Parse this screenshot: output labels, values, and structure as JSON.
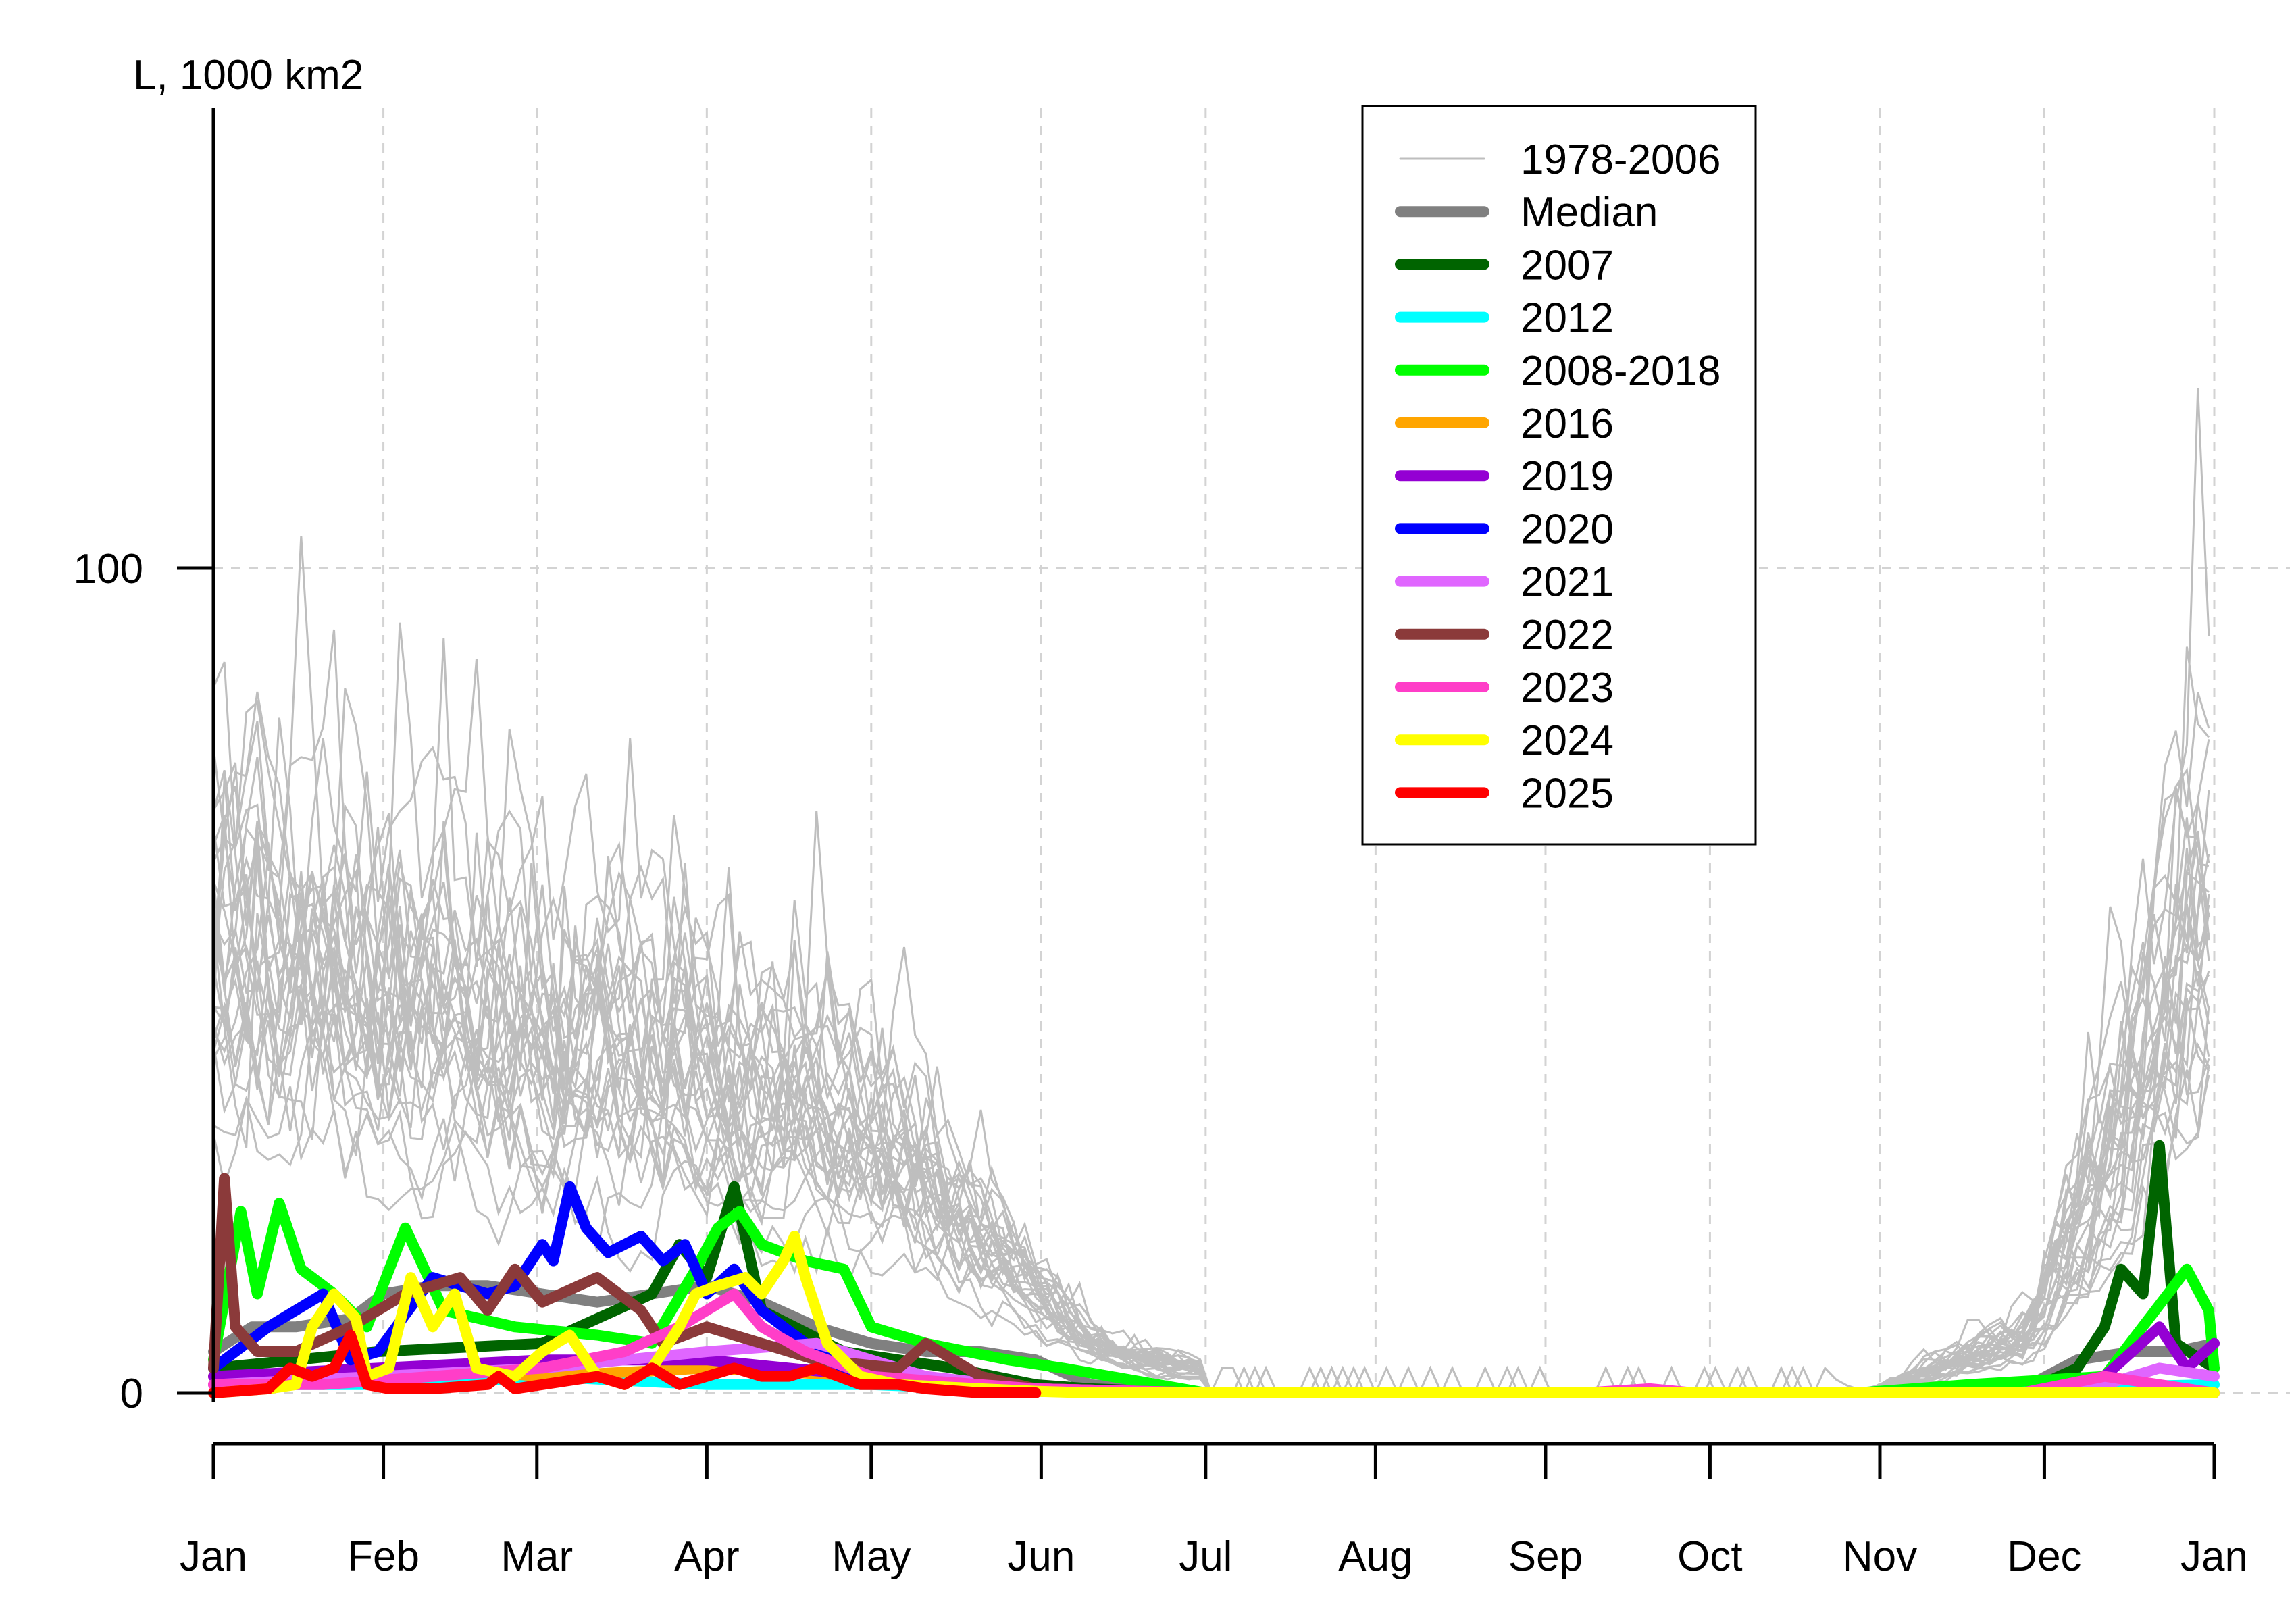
{
  "chart_data": {
    "type": "line",
    "ylabel": "L, 1000 km2",
    "xlabel": "",
    "title": "",
    "x_ticks": [
      "Jan",
      "Feb",
      "Mar",
      "Apr",
      "May",
      "Jun",
      "Jul",
      "Aug",
      "Sep",
      "Oct",
      "Nov",
      "Dec",
      "Jan"
    ],
    "x_tick_days": [
      0,
      31,
      59,
      90,
      120,
      151,
      181,
      212,
      243,
      273,
      304,
      334,
      365
    ],
    "y_ticks": [
      0,
      100
    ],
    "ylim": [
      -5,
      155
    ],
    "xlim": [
      0,
      365
    ],
    "grid": true,
    "legend_position": "top-center",
    "legend": [
      {
        "label": "1978-2006",
        "color": "#bebebe",
        "width": "thin"
      },
      {
        "label": "Median",
        "color": "#808080",
        "width": "thick"
      },
      {
        "label": "2007",
        "color": "#006400",
        "width": "thick"
      },
      {
        "label": "2012",
        "color": "#00ffff",
        "width": "thick"
      },
      {
        "label": "2008-2018",
        "color": "#00ff00",
        "width": "thick"
      },
      {
        "label": "2016",
        "color": "#ffa500",
        "width": "thick"
      },
      {
        "label": "2019",
        "color": "#9400d3",
        "width": "thick"
      },
      {
        "label": "2020",
        "color": "#0000ff",
        "width": "thick"
      },
      {
        "label": "2021",
        "color": "#e066ff",
        "width": "thick"
      },
      {
        "label": "2022",
        "color": "#8b3a3a",
        "width": "thick"
      },
      {
        "label": "2023",
        "color": "#ff3ec8",
        "width": "thick"
      },
      {
        "label": "2024",
        "color": "#ffff00",
        "width": "thick"
      },
      {
        "label": "2025",
        "color": "#ff0000",
        "width": "thick"
      }
    ],
    "series": [
      {
        "name": "Median",
        "color": "#808080",
        "points": [
          [
            0,
            5
          ],
          [
            7,
            8
          ],
          [
            15,
            8
          ],
          [
            25,
            9
          ],
          [
            31,
            12
          ],
          [
            40,
            13
          ],
          [
            50,
            13
          ],
          [
            60,
            12
          ],
          [
            70,
            11
          ],
          [
            80,
            12
          ],
          [
            90,
            13
          ],
          [
            100,
            11
          ],
          [
            110,
            8
          ],
          [
            120,
            6
          ],
          [
            130,
            5
          ],
          [
            140,
            5
          ],
          [
            150,
            4
          ],
          [
            160,
            1
          ],
          [
            170,
            0.5
          ],
          [
            181,
            0
          ],
          [
            300,
            0
          ],
          [
            330,
            0.5
          ],
          [
            340,
            4
          ],
          [
            350,
            5
          ],
          [
            358,
            5
          ],
          [
            365,
            6
          ]
        ]
      },
      {
        "name": "2007",
        "color": "#006400",
        "points": [
          [
            0,
            3
          ],
          [
            30,
            5
          ],
          [
            60,
            6
          ],
          [
            80,
            12
          ],
          [
            85,
            18
          ],
          [
            90,
            14
          ],
          [
            95,
            25
          ],
          [
            100,
            10
          ],
          [
            115,
            5
          ],
          [
            135,
            3
          ],
          [
            150,
            1
          ],
          [
            160,
            0.5
          ],
          [
            181,
            0
          ],
          [
            330,
            0
          ],
          [
            340,
            3
          ],
          [
            345,
            8
          ],
          [
            348,
            15
          ],
          [
            352,
            12
          ],
          [
            355,
            30
          ],
          [
            358,
            6
          ],
          [
            365,
            3
          ]
        ]
      },
      {
        "name": "2012",
        "color": "#00ffff",
        "points": [
          [
            0,
            1
          ],
          [
            40,
            1
          ],
          [
            60,
            2
          ],
          [
            90,
            1
          ],
          [
            120,
            1
          ],
          [
            150,
            0.2
          ],
          [
            181,
            0
          ],
          [
            315,
            0
          ],
          [
            330,
            0.5
          ],
          [
            365,
            1
          ]
        ]
      },
      {
        "name": "2008-2018",
        "color": "#00ff00",
        "points": [
          [
            0,
            4
          ],
          [
            5,
            22
          ],
          [
            8,
            12
          ],
          [
            12,
            23
          ],
          [
            16,
            15
          ],
          [
            22,
            12
          ],
          [
            28,
            8
          ],
          [
            35,
            20
          ],
          [
            42,
            10
          ],
          [
            55,
            8
          ],
          [
            70,
            7
          ],
          [
            80,
            6
          ],
          [
            88,
            15
          ],
          [
            92,
            20
          ],
          [
            96,
            22
          ],
          [
            100,
            18
          ],
          [
            108,
            16
          ],
          [
            115,
            15
          ],
          [
            120,
            8
          ],
          [
            130,
            6
          ],
          [
            145,
            4
          ],
          [
            155,
            3
          ],
          [
            181,
            0
          ],
          [
            300,
            0
          ],
          [
            320,
            1
          ],
          [
            345,
            2
          ],
          [
            360,
            15
          ],
          [
            364,
            10
          ],
          [
            365,
            3
          ]
        ]
      },
      {
        "name": "2016",
        "color": "#ffa500",
        "points": [
          [
            0,
            2
          ],
          [
            20,
            2
          ],
          [
            40,
            3
          ],
          [
            60,
            2
          ],
          [
            90,
            3
          ],
          [
            120,
            2
          ],
          [
            150,
            0.5
          ],
          [
            181,
            0
          ],
          [
            365,
            0
          ]
        ]
      },
      {
        "name": "2019",
        "color": "#9400d3",
        "points": [
          [
            0,
            2
          ],
          [
            30,
            3
          ],
          [
            60,
            4
          ],
          [
            90,
            4
          ],
          [
            120,
            2
          ],
          [
            150,
            0.5
          ],
          [
            181,
            0
          ],
          [
            330,
            0
          ],
          [
            345,
            2
          ],
          [
            355,
            8
          ],
          [
            360,
            3
          ],
          [
            365,
            6
          ]
        ]
      },
      {
        "name": "2020",
        "color": "#0000ff",
        "points": [
          [
            0,
            3
          ],
          [
            10,
            8
          ],
          [
            20,
            12
          ],
          [
            25,
            4
          ],
          [
            30,
            5
          ],
          [
            40,
            14
          ],
          [
            50,
            12
          ],
          [
            55,
            13
          ],
          [
            60,
            18
          ],
          [
            62,
            16
          ],
          [
            65,
            25
          ],
          [
            68,
            20
          ],
          [
            72,
            17
          ],
          [
            78,
            19
          ],
          [
            82,
            16
          ],
          [
            86,
            18
          ],
          [
            90,
            12
          ],
          [
            95,
            15
          ],
          [
            100,
            10
          ],
          [
            108,
            6
          ],
          [
            115,
            3
          ],
          [
            125,
            2
          ],
          [
            135,
            1
          ],
          [
            150,
            0.2
          ],
          [
            181,
            0
          ],
          [
            365,
            0
          ]
        ]
      },
      {
        "name": "2021",
        "color": "#e066ff",
        "points": [
          [
            0,
            1
          ],
          [
            30,
            2
          ],
          [
            60,
            3
          ],
          [
            90,
            5
          ],
          [
            110,
            6
          ],
          [
            130,
            2
          ],
          [
            150,
            0.5
          ],
          [
            181,
            0
          ],
          [
            340,
            0
          ],
          [
            355,
            3
          ],
          [
            365,
            2
          ]
        ]
      },
      {
        "name": "2022",
        "color": "#8b3a3a",
        "points": [
          [
            0,
            3
          ],
          [
            2,
            26
          ],
          [
            4,
            8
          ],
          [
            8,
            5
          ],
          [
            15,
            5
          ],
          [
            25,
            8
          ],
          [
            35,
            12
          ],
          [
            45,
            14
          ],
          [
            50,
            10
          ],
          [
            55,
            15
          ],
          [
            60,
            11
          ],
          [
            70,
            14
          ],
          [
            78,
            10
          ],
          [
            82,
            6
          ],
          [
            90,
            8
          ],
          [
            110,
            4
          ],
          [
            125,
            3
          ],
          [
            130,
            6
          ],
          [
            140,
            2
          ],
          [
            150,
            0.5
          ],
          [
            181,
            0
          ],
          [
            365,
            0
          ]
        ]
      },
      {
        "name": "2023",
        "color": "#ff3ec8",
        "points": [
          [
            0,
            1
          ],
          [
            20,
            1
          ],
          [
            40,
            2
          ],
          [
            60,
            3
          ],
          [
            75,
            5
          ],
          [
            85,
            8
          ],
          [
            90,
            10
          ],
          [
            95,
            12
          ],
          [
            100,
            8
          ],
          [
            108,
            5
          ],
          [
            120,
            2
          ],
          [
            150,
            0.5
          ],
          [
            181,
            0
          ],
          [
            250,
            0
          ],
          [
            262,
            0.5
          ],
          [
            270,
            0
          ],
          [
            330,
            0
          ],
          [
            345,
            2
          ],
          [
            365,
            0
          ]
        ]
      },
      {
        "name": "2024",
        "color": "#ffff00",
        "points": [
          [
            0,
            0
          ],
          [
            10,
            0.5
          ],
          [
            15,
            1
          ],
          [
            18,
            8
          ],
          [
            22,
            12
          ],
          [
            26,
            9
          ],
          [
            28,
            2
          ],
          [
            32,
            3
          ],
          [
            36,
            14
          ],
          [
            40,
            8
          ],
          [
            44,
            12
          ],
          [
            48,
            3
          ],
          [
            55,
            2
          ],
          [
            60,
            5
          ],
          [
            65,
            7
          ],
          [
            70,
            2
          ],
          [
            75,
            1
          ],
          [
            80,
            3
          ],
          [
            85,
            8
          ],
          [
            88,
            12
          ],
          [
            92,
            13
          ],
          [
            97,
            14
          ],
          [
            100,
            12
          ],
          [
            104,
            16
          ],
          [
            106,
            19
          ],
          [
            108,
            14
          ],
          [
            112,
            6
          ],
          [
            118,
            2
          ],
          [
            125,
            1
          ],
          [
            140,
            0.5
          ],
          [
            150,
            0.2
          ],
          [
            160,
            0
          ],
          [
            365,
            0
          ]
        ]
      },
      {
        "name": "2025",
        "color": "#ff0000",
        "points": [
          [
            0,
            0
          ],
          [
            10,
            0.5
          ],
          [
            14,
            3
          ],
          [
            18,
            2
          ],
          [
            22,
            3
          ],
          [
            25,
            7
          ],
          [
            28,
            1
          ],
          [
            32,
            0.5
          ],
          [
            40,
            0.5
          ],
          [
            50,
            1
          ],
          [
            52,
            2
          ],
          [
            55,
            0.5
          ],
          [
            60,
            1
          ],
          [
            70,
            2
          ],
          [
            75,
            1
          ],
          [
            80,
            3
          ],
          [
            85,
            1
          ],
          [
            90,
            2
          ],
          [
            95,
            3
          ],
          [
            100,
            2
          ],
          [
            105,
            2
          ],
          [
            110,
            3
          ],
          [
            118,
            1
          ],
          [
            125,
            1
          ],
          [
            130,
            0.5
          ],
          [
            140,
            0
          ],
          [
            150,
            0
          ]
        ]
      }
    ]
  }
}
